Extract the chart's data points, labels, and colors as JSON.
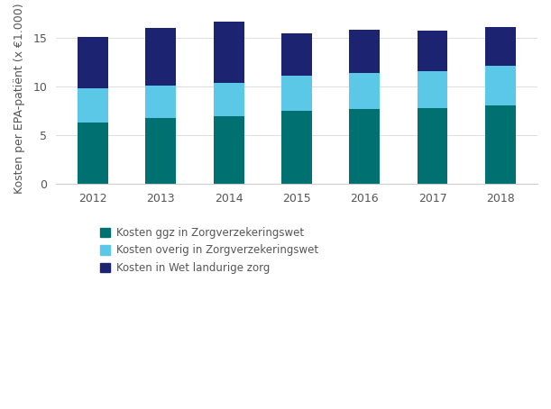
{
  "years": [
    2012,
    2013,
    2014,
    2015,
    2016,
    2017,
    2018
  ],
  "ggz": [
    6.3,
    6.8,
    7.0,
    7.5,
    7.7,
    7.8,
    8.1
  ],
  "overig": [
    3.5,
    3.3,
    3.4,
    3.6,
    3.7,
    3.8,
    4.0
  ],
  "wlz": [
    5.3,
    5.9,
    6.3,
    4.4,
    4.4,
    4.1,
    4.0
  ],
  "color_ggz": "#007070",
  "color_overig": "#5BC8E8",
  "color_wlz": "#1C2370",
  "ylabel": "Kosten per EPA-patiënt (x €1.000)",
  "ylim": [
    0,
    17.5
  ],
  "yticks": [
    0,
    5,
    10,
    15
  ],
  "legend_labels": [
    "Kosten ggz in Zorgverzekeringswet",
    "Kosten overig in Zorgverzekeringswet",
    "Kosten in Wet landurige zorg"
  ],
  "background_color": "#ffffff",
  "bar_width": 0.45,
  "grid_color": "#dddddd",
  "tick_color": "#888888",
  "spine_color": "#cccccc"
}
